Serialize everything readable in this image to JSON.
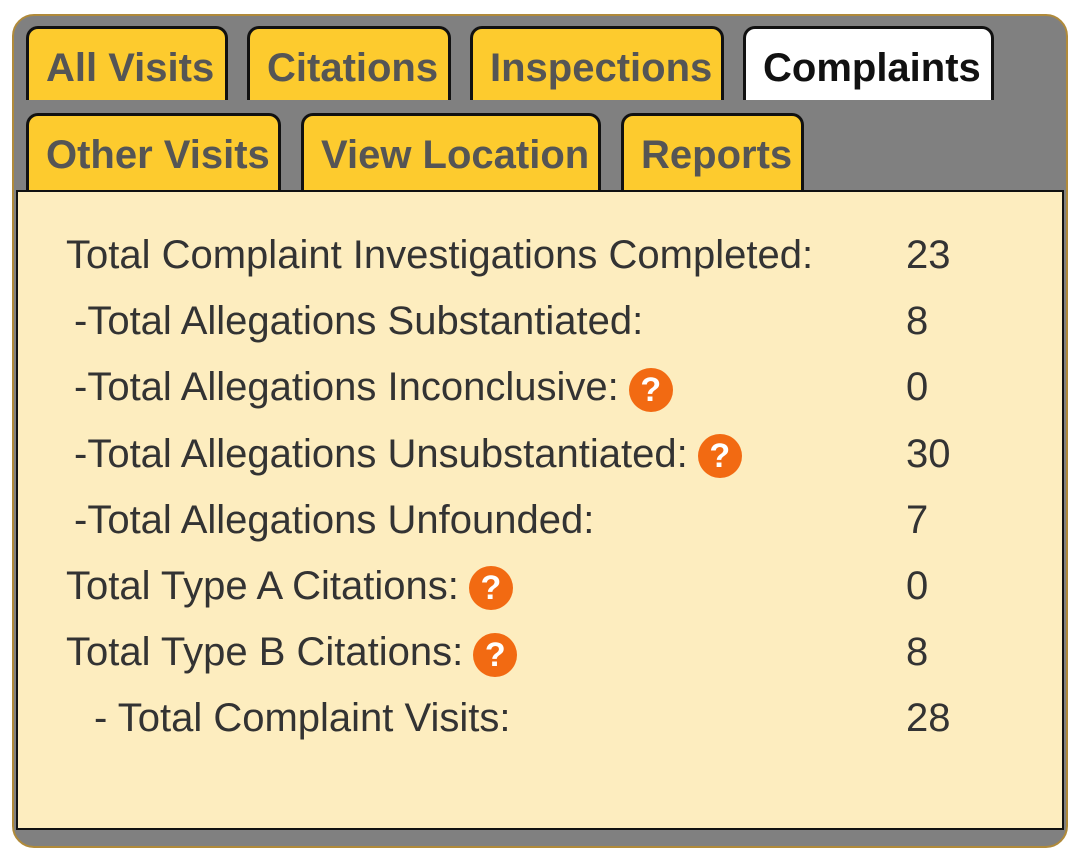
{
  "tabs_row1": [
    {
      "label": "All Visits"
    },
    {
      "label": "Citations"
    },
    {
      "label": "Inspections"
    },
    {
      "label": "Complaints",
      "active": true
    }
  ],
  "tabs_row2": [
    {
      "label": "Other Visits"
    },
    {
      "label": "View Location"
    },
    {
      "label": "Reports"
    }
  ],
  "colors": {
    "tab": "#fdcb2e",
    "active_tab": "#ffffff",
    "panel": "#fdedbf",
    "help_icon": "#f26a12"
  },
  "help_icon_glyph": "?",
  "stats": [
    {
      "label": "Total Complaint Investigations Completed:",
      "value": "23",
      "help": false
    },
    {
      "label": "-Total Allegations Substantiated:",
      "value": "8",
      "help": false
    },
    {
      "label": "-Total Allegations Inconclusive:",
      "value": "0",
      "help": true
    },
    {
      "label": "-Total Allegations Unsubstantiated:",
      "value": "30",
      "help": true
    },
    {
      "label": "-Total Allegations Unfounded:",
      "value": "7",
      "help": false
    },
    {
      "label": "Total Type A Citations:",
      "value": "0",
      "help": true
    },
    {
      "label": "Total Type B Citations:",
      "value": "8",
      "help": true
    },
    {
      "label": "- Total Complaint Visits:",
      "value": "28",
      "help": false
    }
  ]
}
